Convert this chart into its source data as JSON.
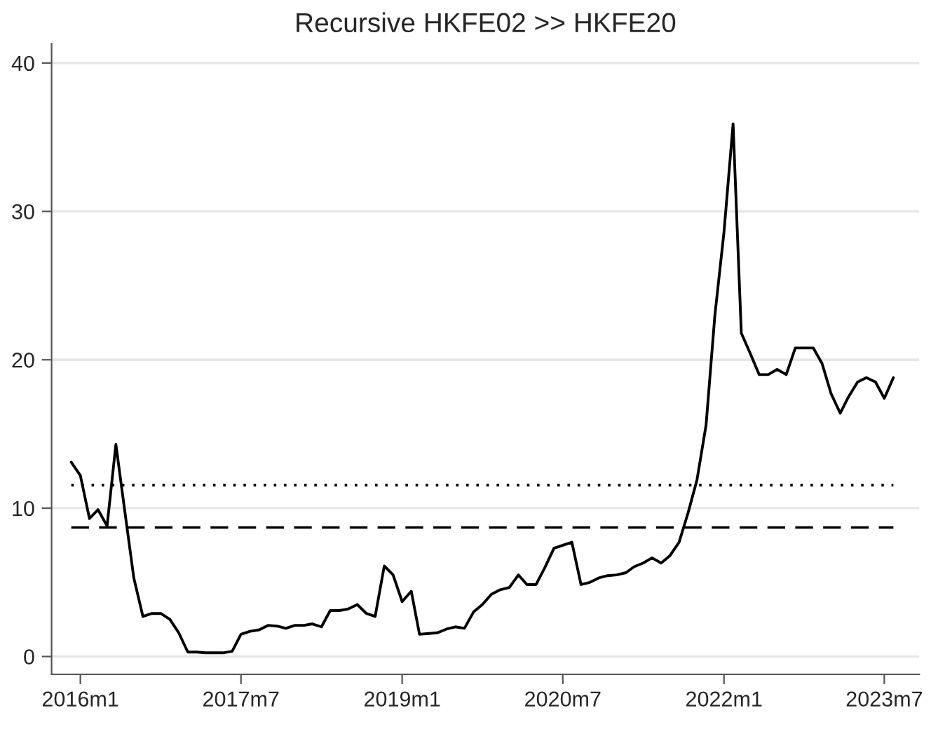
{
  "chart_data": {
    "type": "line",
    "title": "Recursive HKFE02 >> HKFE20",
    "x": [
      "2015-12",
      "2016-01",
      "2016-02",
      "2016-03",
      "2016-04",
      "2016-05",
      "2016-06",
      "2016-07",
      "2016-08",
      "2016-09",
      "2016-10",
      "2016-11",
      "2016-12",
      "2017-01",
      "2017-02",
      "2017-03",
      "2017-04",
      "2017-05",
      "2017-06",
      "2017-07",
      "2017-08",
      "2017-09",
      "2017-10",
      "2017-11",
      "2017-12",
      "2018-01",
      "2018-02",
      "2018-03",
      "2018-04",
      "2018-05",
      "2018-06",
      "2018-07",
      "2018-08",
      "2018-09",
      "2018-10",
      "2018-11",
      "2018-12",
      "2019-01",
      "2019-02",
      "2019-03",
      "2019-04",
      "2019-05",
      "2019-06",
      "2019-07",
      "2019-08",
      "2019-09",
      "2019-10",
      "2019-11",
      "2019-12",
      "2020-01",
      "2020-02",
      "2020-03",
      "2020-04",
      "2020-05",
      "2020-06",
      "2020-07",
      "2020-08",
      "2020-09",
      "2020-10",
      "2020-11",
      "2020-12",
      "2021-01",
      "2021-02",
      "2021-03",
      "2021-04",
      "2021-05",
      "2021-06",
      "2021-07",
      "2021-08",
      "2021-09",
      "2021-10",
      "2021-11",
      "2021-12",
      "2022-01",
      "2022-02",
      "2022-03",
      "2022-04",
      "2022-05",
      "2022-06",
      "2022-07",
      "2022-08",
      "2022-09",
      "2022-10",
      "2022-11",
      "2022-12",
      "2023-01",
      "2023-02",
      "2023-03",
      "2023-04",
      "2023-05",
      "2023-06",
      "2023-07",
      "2023-08"
    ],
    "series": [
      {
        "color": "#000000",
        "values": [
          13.1,
          12.2,
          9.3,
          9.9,
          8.8,
          14.3,
          9.7,
          5.3,
          2.7,
          2.9,
          2.9,
          2.5,
          1.6,
          0.3,
          0.3,
          0.25,
          0.25,
          0.25,
          0.35,
          1.5,
          1.7,
          1.8,
          2.1,
          2.05,
          1.9,
          2.1,
          2.1,
          2.2,
          2.0,
          3.1,
          3.1,
          3.2,
          3.5,
          2.9,
          2.7,
          6.1,
          5.5,
          3.7,
          4.4,
          1.5,
          1.55,
          1.6,
          1.85,
          2.0,
          1.9,
          3.0,
          3.5,
          4.2,
          4.5,
          4.65,
          5.5,
          4.85,
          4.85,
          6.0,
          7.3,
          7.5,
          7.7,
          4.85,
          5.0,
          5.3,
          5.45,
          5.5,
          5.65,
          6.05,
          6.3,
          6.65,
          6.3,
          6.8,
          7.7,
          9.7,
          11.9,
          15.6,
          23.0,
          28.6,
          35.9,
          21.8,
          20.4,
          19.0,
          19.0,
          19.35,
          19.0,
          20.8,
          20.8,
          20.8,
          19.75,
          17.7,
          16.4,
          17.5,
          18.5,
          18.8,
          18.5,
          17.4,
          18.8
        ]
      }
    ],
    "xlim": [
      "2015-09-25",
      "2023-10-28"
    ],
    "xticks": [
      {
        "value": "2016-01",
        "label": "2016m1"
      },
      {
        "value": "2017-07",
        "label": "2017m7"
      },
      {
        "value": "2019-01",
        "label": "2019m1"
      },
      {
        "value": "2020-07",
        "label": "2020m7"
      },
      {
        "value": "2022-01",
        "label": "2022m1"
      },
      {
        "value": "2023-07",
        "label": "2023m7"
      }
    ],
    "ylim": [
      -1.2,
      41.3
    ],
    "yticks": [
      0,
      10,
      20,
      30,
      40
    ],
    "ref_lines": [
      {
        "axis": "y",
        "value": 11.55,
        "color": "#000000",
        "line_style": "dotted"
      },
      {
        "axis": "y",
        "value": 8.7,
        "color": "#000000",
        "line_style": "dashed"
      }
    ],
    "grid": "y",
    "legend": false,
    "marker": "none",
    "line_style": "solid"
  }
}
